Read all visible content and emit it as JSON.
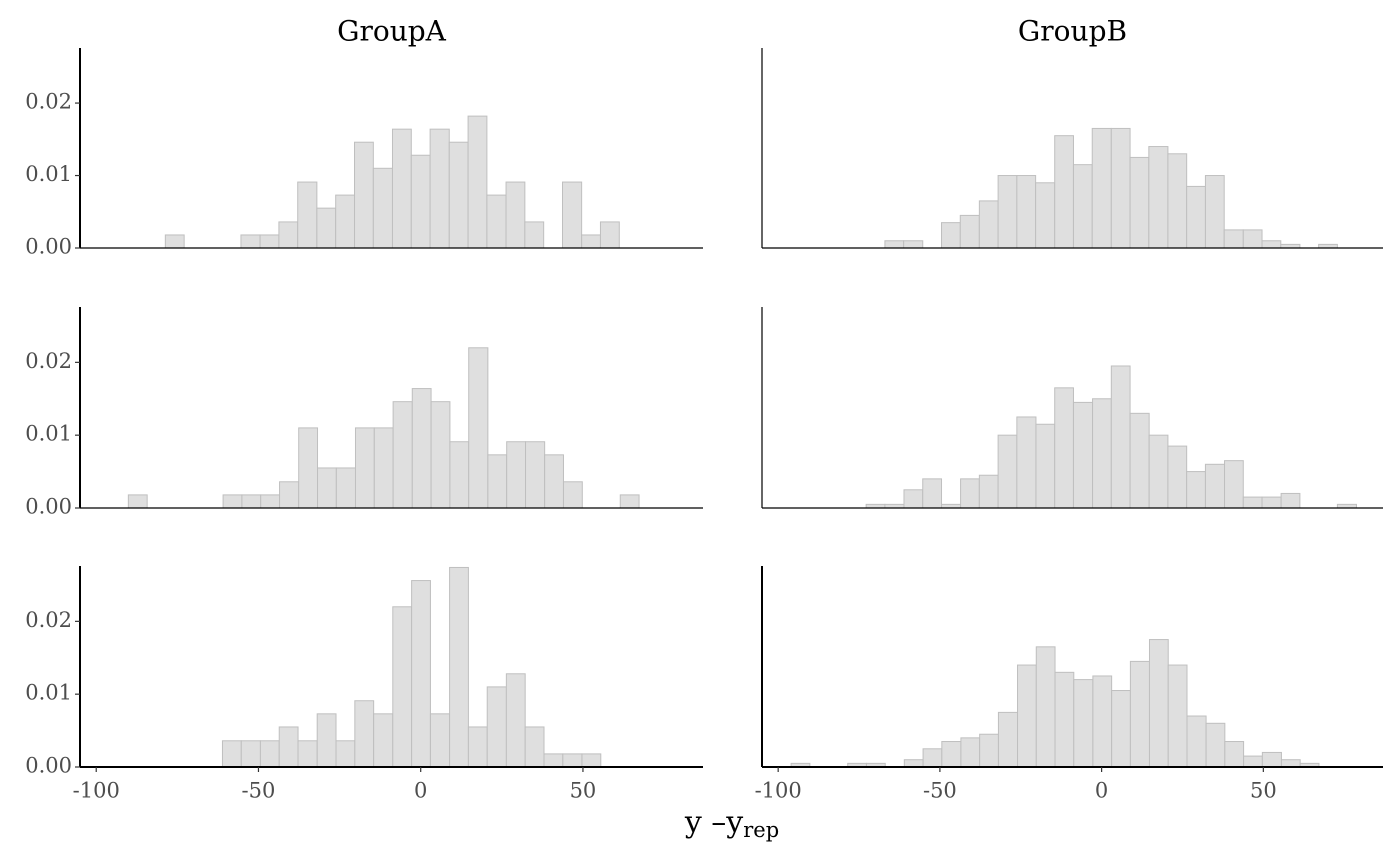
{
  "chart_data": {
    "type": "histogram",
    "columns": [
      "GroupA",
      "GroupB"
    ],
    "x_label": "y –y",
    "x_label_sub": "rep",
    "xlim": [
      -105,
      87
    ],
    "xticks": [
      -100,
      -50,
      0,
      50
    ],
    "ylim": [
      0,
      0.0276
    ],
    "yticks": [
      {
        "value": 0,
        "label": "0.00"
      },
      {
        "value": 0.01,
        "label": "0.01"
      },
      {
        "value": 0.02,
        "label": "0.02"
      }
    ],
    "color": "#dfdfdf",
    "edge_color": "#bfbfbf",
    "panels": [
      {
        "bins": [
          -78.7,
          -72.9,
          -67.0,
          -61.2,
          -55.4,
          -49.5,
          -43.7,
          -37.9,
          -32.0,
          -26.2,
          -20.4,
          -14.6,
          -8.7,
          -2.9,
          2.9,
          8.8,
          14.6,
          20.4,
          26.3,
          32.1,
          37.9,
          43.7,
          49.6,
          55.4,
          61.2
        ],
        "values": [
          0.0018,
          0,
          0,
          0,
          0.0018,
          0.0018,
          0.0036,
          0.0091,
          0.0055,
          0.0073,
          0.0146,
          0.011,
          0.0164,
          0.0128,
          0.0164,
          0.0146,
          0.0182,
          0.0073,
          0.0091,
          0.0036,
          0,
          0.0091,
          0.0018,
          0.0036
        ]
      },
      {
        "bins": [
          -67.0,
          -61.2,
          -55.3,
          -49.5,
          -43.7,
          -37.8,
          -32.0,
          -26.2,
          -20.4,
          -14.5,
          -8.7,
          -2.9,
          3.0,
          8.8,
          14.6,
          20.5,
          26.3,
          32.1,
          37.9,
          43.8,
          49.6,
          55.4,
          61.3,
          67.1,
          72.9
        ],
        "values": [
          0.001,
          0.001,
          0,
          0.0035,
          0.0045,
          0.0065,
          0.01,
          0.01,
          0.009,
          0.0155,
          0.0115,
          0.0165,
          0.0165,
          0.0125,
          0.014,
          0.013,
          0.0085,
          0.01,
          0.0025,
          0.0025,
          0.001,
          0.0005,
          0,
          0.0005
        ]
      },
      {
        "bins": [
          -90.1,
          -84.3,
          -78.4,
          -72.6,
          -66.8,
          -60.9,
          -55.1,
          -49.3,
          -43.5,
          -37.6,
          -31.8,
          -26.0,
          -20.1,
          -14.3,
          -8.5,
          -2.6,
          3.2,
          9.0,
          14.8,
          20.7,
          26.5,
          32.3,
          38.2,
          44.0,
          49.8,
          55.6,
          61.5,
          67.3
        ],
        "values": [
          0.0018,
          0,
          0,
          0,
          0,
          0.0018,
          0.0018,
          0.0018,
          0.0036,
          0.011,
          0.0055,
          0.0055,
          0.011,
          0.011,
          0.0146,
          0.0164,
          0.0146,
          0.0091,
          0.022,
          0.0073,
          0.0091,
          0.0091,
          0.0073,
          0.0036,
          0,
          0,
          0.0018
        ]
      },
      {
        "bins": [
          -72.8,
          -67.0,
          -61.1,
          -55.3,
          -49.5,
          -43.6,
          -37.8,
          -32.0,
          -26.2,
          -20.3,
          -14.5,
          -8.7,
          -2.8,
          3.0,
          8.8,
          14.7,
          20.5,
          26.3,
          32.1,
          38.0,
          43.8,
          49.6,
          55.5,
          61.3,
          67.1,
          72.9,
          78.8
        ],
        "values": [
          0.0005,
          0.0005,
          0.0025,
          0.004,
          0.0005,
          0.004,
          0.0045,
          0.01,
          0.0125,
          0.0115,
          0.0165,
          0.0145,
          0.015,
          0.0195,
          0.013,
          0.01,
          0.0085,
          0.005,
          0.006,
          0.0065,
          0.0015,
          0.0015,
          0.002,
          0,
          0,
          0.0005
        ]
      },
      {
        "bins": [
          -61.1,
          -55.3,
          -49.4,
          -43.6,
          -37.8,
          -31.9,
          -26.1,
          -20.3,
          -14.5,
          -8.6,
          -2.8,
          3.0,
          8.9,
          14.7,
          20.5,
          26.4,
          32.2,
          38.0,
          43.8,
          49.7,
          55.5
        ],
        "values": [
          0.0036,
          0.0036,
          0.0036,
          0.0055,
          0.0036,
          0.0073,
          0.0036,
          0.0091,
          0.0073,
          0.022,
          0.0256,
          0.0073,
          0.0274,
          0.0055,
          0.011,
          0.0128,
          0.0055,
          0.0018,
          0.0018,
          0.0018
        ]
      },
      {
        "bins": [
          -96.0,
          -90.2,
          -84.3,
          -78.5,
          -72.7,
          -66.9,
          -61.0,
          -55.2,
          -49.4,
          -43.5,
          -37.7,
          -31.9,
          -26.0,
          -20.2,
          -14.4,
          -8.6,
          -2.7,
          3.1,
          8.9,
          14.8,
          20.6,
          26.4,
          32.3,
          38.1,
          43.9,
          49.7,
          55.6,
          61.4,
          67.2
        ],
        "values": [
          0.0005,
          0,
          0,
          0.0005,
          0.0005,
          0,
          0.001,
          0.0025,
          0.0035,
          0.004,
          0.0045,
          0.0075,
          0.014,
          0.0165,
          0.013,
          0.012,
          0.0125,
          0.0105,
          0.0145,
          0.0175,
          0.014,
          0.007,
          0.006,
          0.0035,
          0.0015,
          0.002,
          0.001,
          0.0005
        ]
      }
    ]
  }
}
